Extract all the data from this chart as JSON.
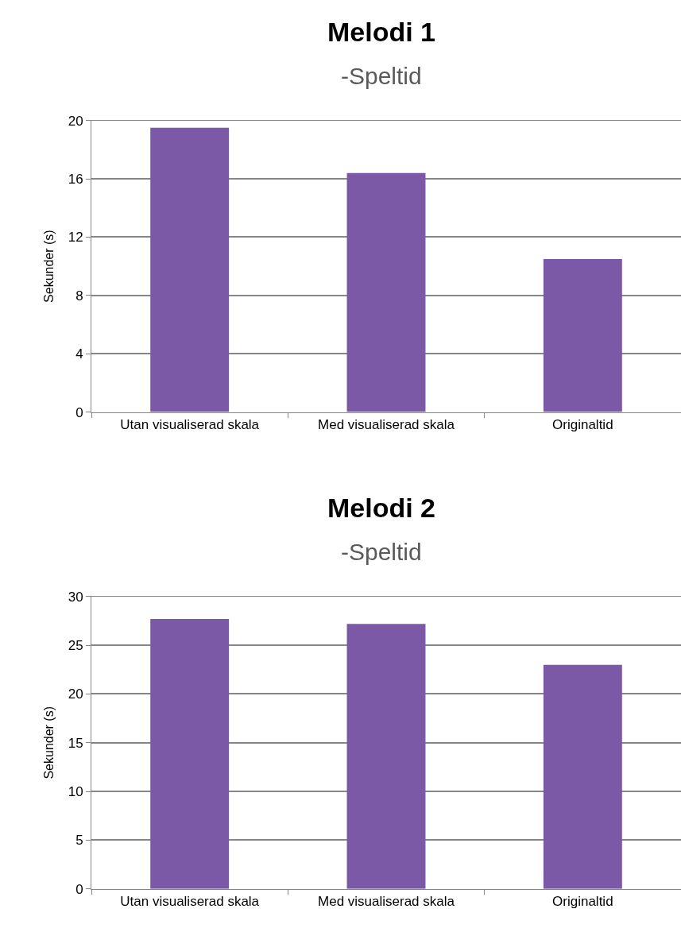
{
  "chart_data": [
    {
      "type": "bar",
      "title": "Melodi 1",
      "subtitle": "-Speltid",
      "ylabel": "Sekunder (s)",
      "categories": [
        "Utan visualiserad skala",
        "Med visualiserad skala",
        "Originaltid"
      ],
      "values": [
        19.5,
        16.4,
        10.5
      ],
      "color": "#7b59a6",
      "ylim": [
        0,
        20
      ],
      "yticks": [
        0,
        4,
        8,
        12,
        16,
        20
      ],
      "grid": "y"
    },
    {
      "type": "bar",
      "title": "Melodi 2",
      "subtitle": "-Speltid",
      "ylabel": "Sekunder (s)",
      "categories": [
        "Utan visualiserad skala",
        "Med visualiserad skala",
        "Originaltid"
      ],
      "values": [
        27.7,
        27.2,
        23.0
      ],
      "color": "#7b59a6",
      "ylim": [
        0,
        30
      ],
      "yticks": [
        0,
        5,
        10,
        15,
        20,
        25,
        30
      ],
      "grid": "y"
    }
  ]
}
